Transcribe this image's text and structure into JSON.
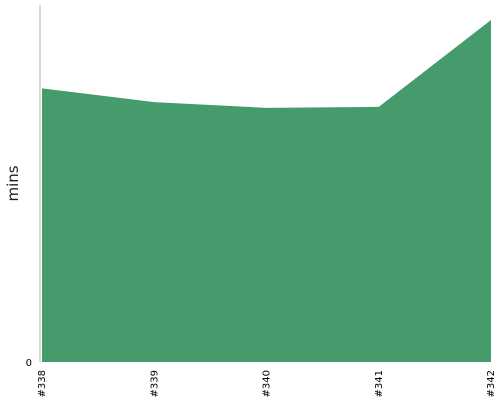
{
  "chart_data": {
    "type": "area",
    "x": [
      "#338",
      "#339",
      "#340",
      "#341",
      "#342"
    ],
    "series": [
      {
        "values": [
          80.0,
          76.0,
          74.3,
          74.6,
          100.0
        ]
      }
    ],
    "ylabel": "mins",
    "yticks": [
      "0"
    ],
    "ylim": [
      0,
      100
    ],
    "grid": false,
    "legend": "none",
    "colors": {
      "area": "#469b6d",
      "axis": "#b5b5b5"
    }
  }
}
